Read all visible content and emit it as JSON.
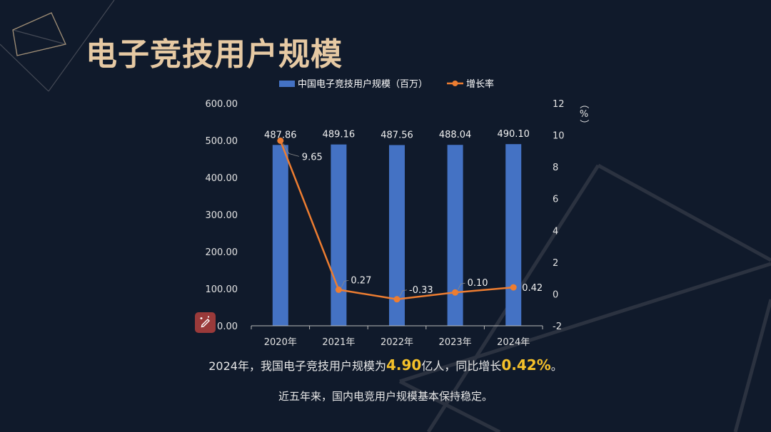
{
  "title": "电子竞技用户规模",
  "summary": {
    "line1_prefix": "2024年，我国电子竞技用户规模为",
    "line1_value1": "4.90",
    "line1_mid": "亿人，同比增长",
    "line1_value2": "0.42%",
    "line1_suffix": "。",
    "line2": "近五年来，国内电竞用户规模基本保持稳定。"
  },
  "colors": {
    "bar": "#4472c4",
    "line": "#ed7d31",
    "title": "#e6c9a3",
    "highlight": "#f5c12a",
    "background": "#101a2b"
  },
  "edit_icon": "magic-edit-icon",
  "chart_data": {
    "type": "bar",
    "categories": [
      "2020年",
      "2021年",
      "2022年",
      "2023年",
      "2024年"
    ],
    "series": [
      {
        "name": "中国电子竞技用户规模（百万）",
        "type": "bar",
        "axis": "left",
        "values": [
          487.86,
          489.16,
          487.56,
          488.04,
          490.1
        ],
        "labels": [
          "487.86",
          "489.16",
          "487.56",
          "488.04",
          "490.10"
        ]
      },
      {
        "name": "增长率",
        "type": "line",
        "axis": "right",
        "values": [
          9.65,
          0.27,
          -0.33,
          0.1,
          0.42
        ],
        "labels": [
          "9.65",
          "0.27",
          "-0.33",
          "0.10",
          "0.42"
        ]
      }
    ],
    "ylim_left": [
      0,
      600
    ],
    "yticks_left": [
      "0.00",
      "100.00",
      "200.00",
      "300.00",
      "400.00",
      "500.00",
      "600.00"
    ],
    "ylim_right": [
      -2,
      12
    ],
    "yticks_right": [
      "-2",
      "0",
      "2",
      "4",
      "6",
      "8",
      "10",
      "12"
    ],
    "ylabel_right": "（%）",
    "grid": false,
    "legend": "top"
  }
}
